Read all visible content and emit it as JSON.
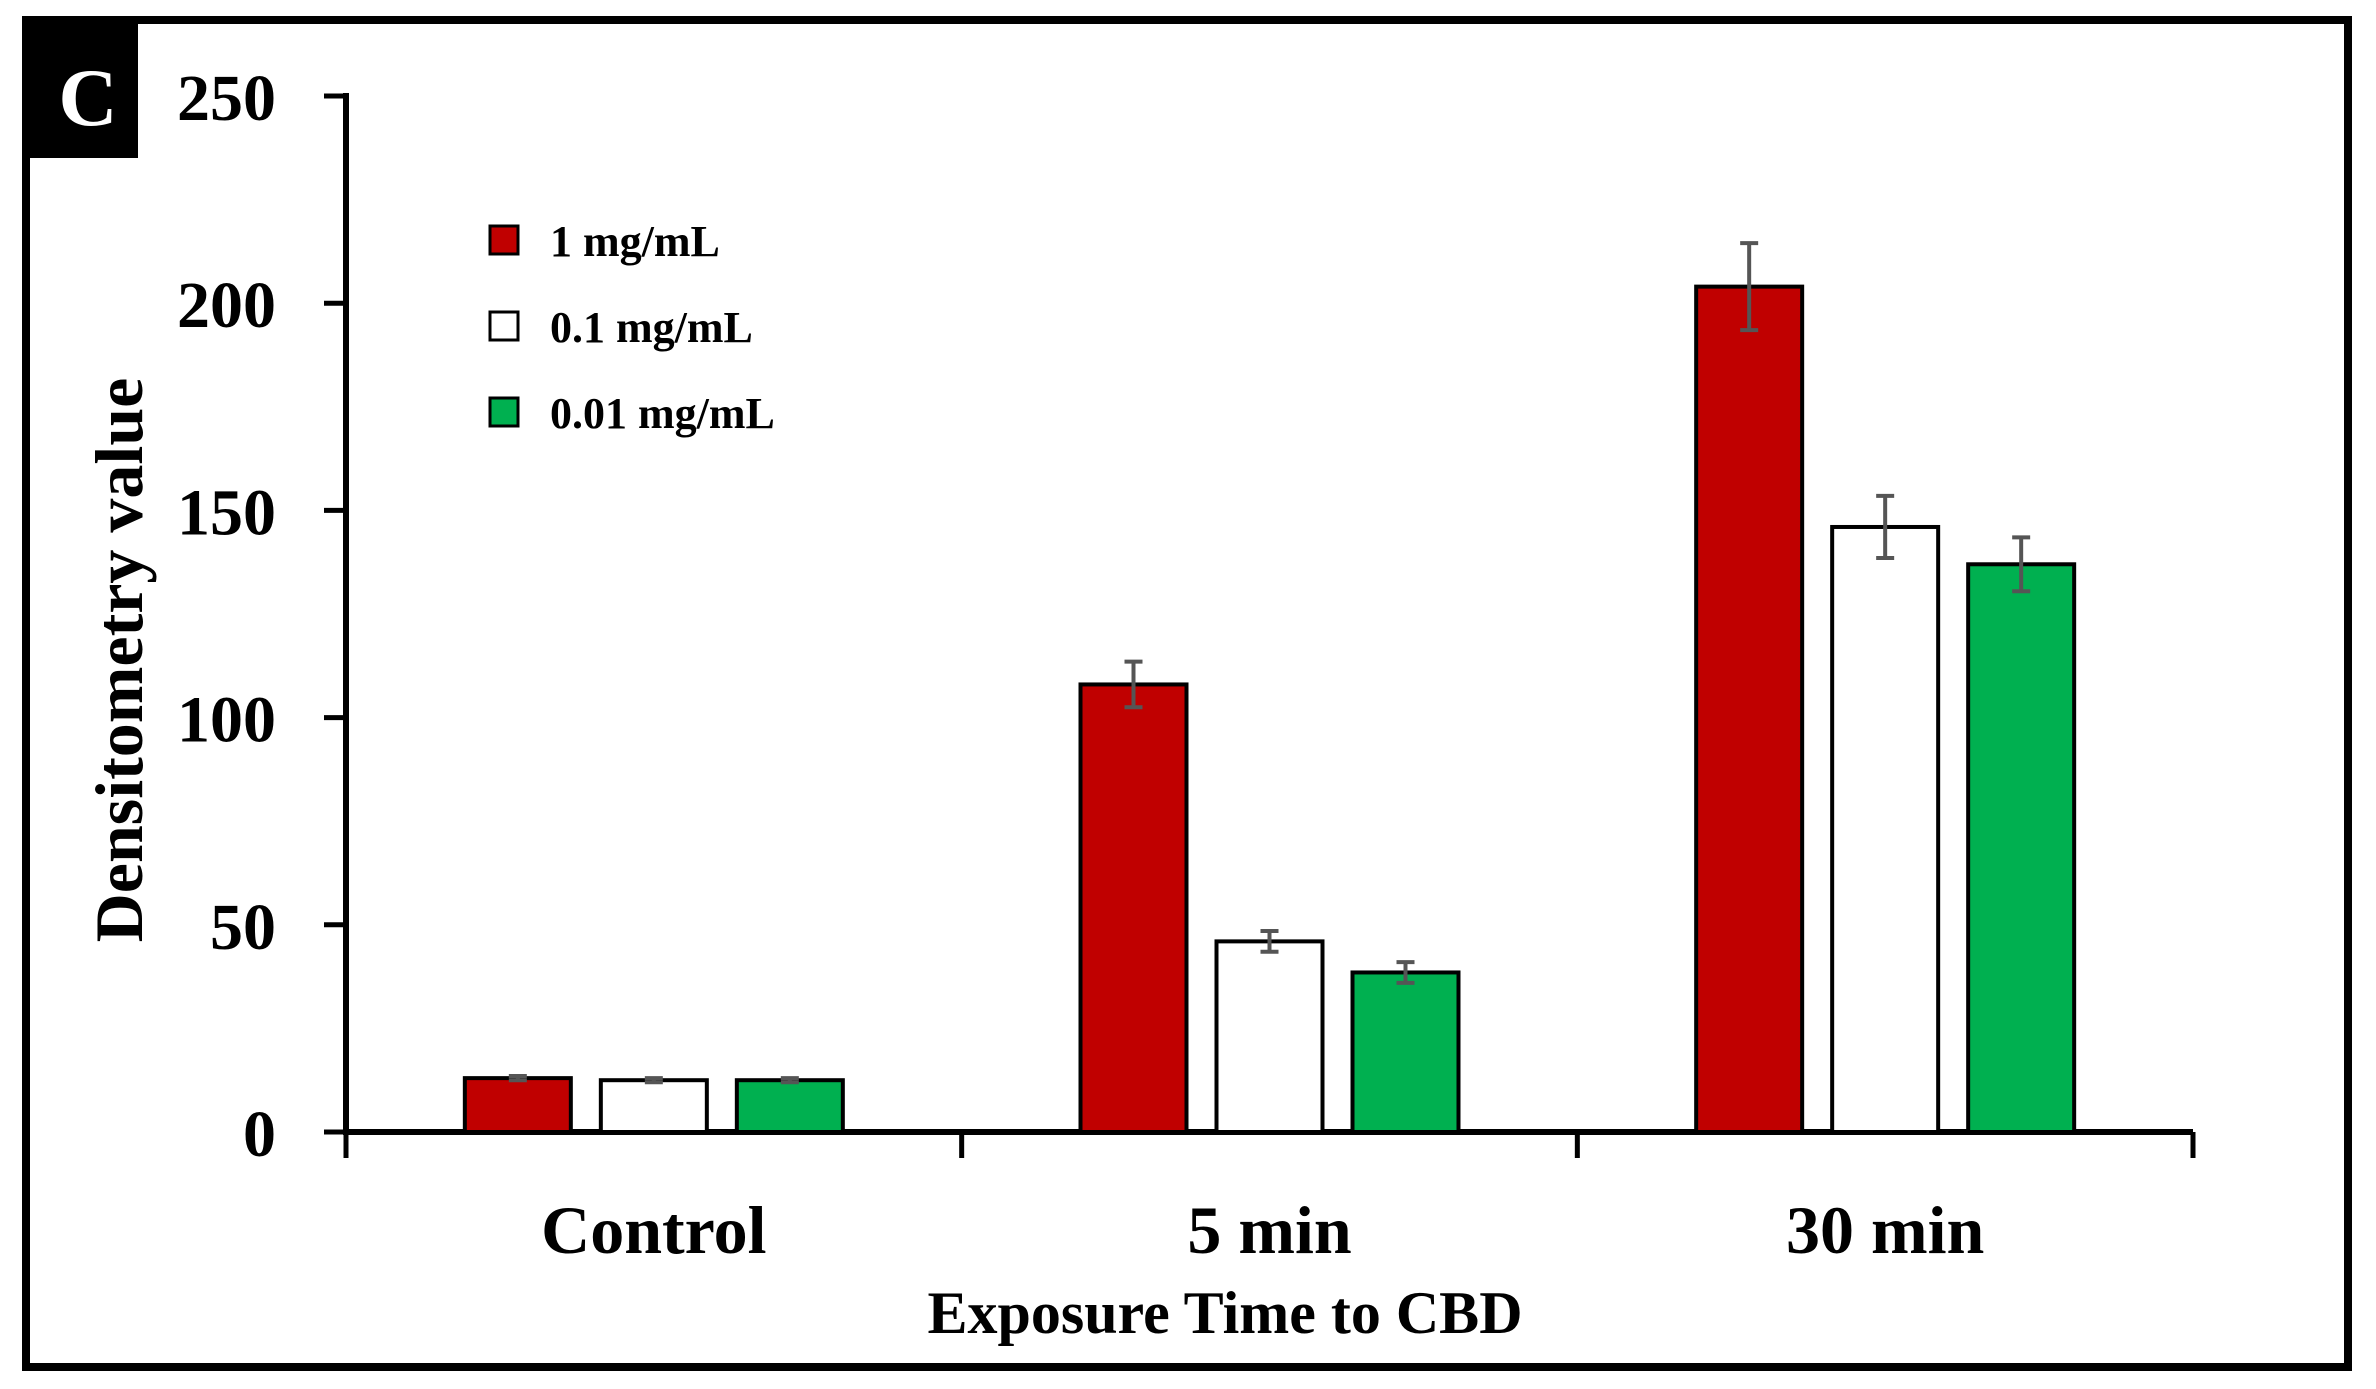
{
  "panel_label": "C",
  "chart_data": {
    "type": "bar",
    "categories": [
      "Control",
      "5 min",
      "30 min"
    ],
    "series": [
      {
        "name": "1 mg/mL",
        "color": "#c00000",
        "values": [
          13,
          108,
          204
        ],
        "errors": [
          0.5,
          5.5,
          10.5
        ]
      },
      {
        "name": "0.1 mg/mL",
        "color": "#ffffff",
        "values": [
          12.5,
          46,
          146
        ],
        "errors": [
          0.5,
          2.5,
          7.5
        ]
      },
      {
        "name": "0.01 mg/mL",
        "color": "#00b050",
        "values": [
          12.5,
          38.5,
          137
        ],
        "errors": [
          0.5,
          2.5,
          6.5
        ]
      }
    ],
    "xlabel": "Exposure Time to CBD",
    "ylabel": "Densitometry value",
    "ylim": [
      0,
      250
    ],
    "yticks": [
      0,
      50,
      100,
      150,
      200,
      250
    ],
    "grid": false,
    "legend": "top-left"
  }
}
